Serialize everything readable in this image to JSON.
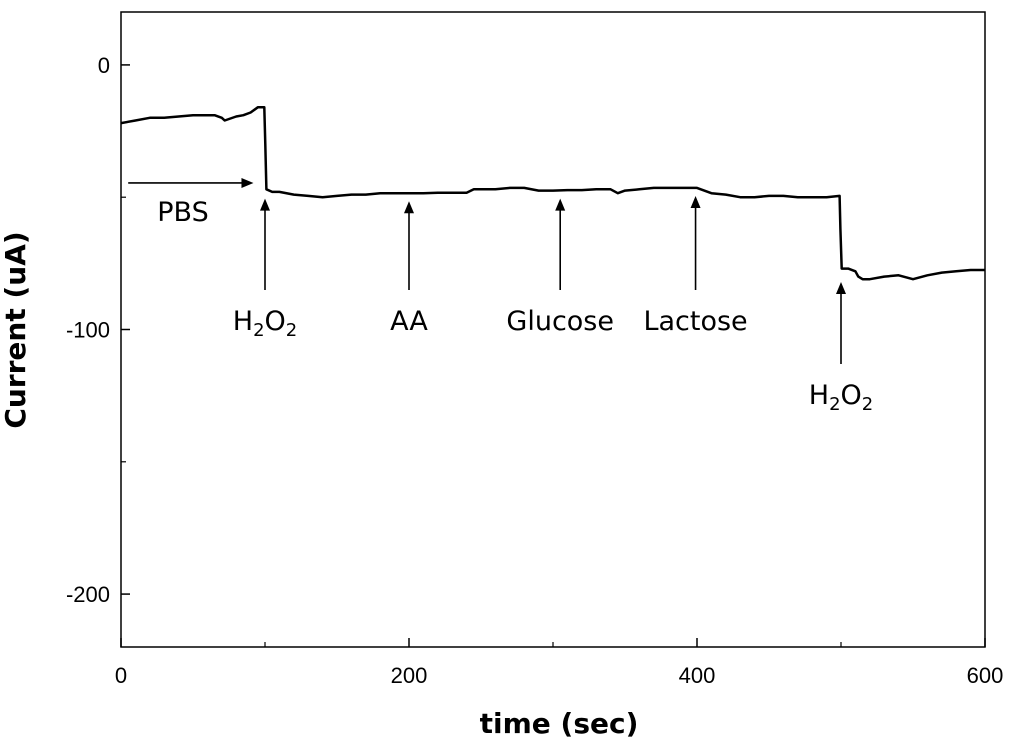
{
  "chart_data": {
    "type": "line",
    "xlabel": "time (sec)",
    "ylabel": "Current (uA)",
    "xlim": [
      0,
      600
    ],
    "ylim": [
      -220,
      20
    ],
    "xticks": [
      0,
      200,
      400,
      600
    ],
    "yticks": [
      0,
      -100,
      -200
    ],
    "grid": false,
    "series": [
      {
        "x": [
          0,
          10,
          20,
          30,
          40,
          50,
          60,
          65,
          70,
          72,
          80,
          85,
          90,
          95,
          99.5,
          100.2,
          101,
          105,
          110,
          120,
          130,
          140,
          150,
          160,
          170,
          180,
          190,
          200,
          210,
          220,
          230,
          240,
          245,
          250,
          260,
          270,
          280,
          290,
          300,
          310,
          320,
          330,
          340,
          345,
          350,
          360,
          370,
          380,
          390,
          400,
          410,
          420,
          430,
          440,
          450,
          460,
          470,
          480,
          490,
          499,
          499.6,
          500.5,
          505,
          510,
          512,
          515,
          520,
          530,
          540,
          550,
          560,
          570,
          580,
          590,
          600
        ],
        "y": [
          -22,
          -21,
          -20,
          -20,
          -19.5,
          -19,
          -19,
          -19,
          -20,
          -21,
          -19.5,
          -19,
          -18,
          -16,
          -16,
          -30,
          -47,
          -48,
          -48,
          -49,
          -49.5,
          -50,
          -49.5,
          -49,
          -49,
          -48.5,
          -48.5,
          -48.5,
          -48.5,
          -48.3,
          -48.3,
          -48.3,
          -47,
          -47,
          -47,
          -46.5,
          -46.5,
          -47.5,
          -47.5,
          -47.3,
          -47.3,
          -47,
          -47,
          -48.5,
          -47.5,
          -47,
          -46.5,
          -46.5,
          -46.5,
          -46.5,
          -48.5,
          -49,
          -50,
          -50,
          -49.5,
          -49.5,
          -50,
          -50,
          -50,
          -49.5,
          -62,
          -77,
          -77,
          -78,
          -80,
          -81,
          -81,
          -80,
          -79.5,
          -81,
          -79.5,
          -78.5,
          -78,
          -77.5,
          -77.5
        ]
      }
    ],
    "annotations": [
      {
        "base": "",
        "sub": "",
        "after": "",
        "arrow_x": 100,
        "arrow_y": -47.5
      },
      {
        "base": "",
        "sub": "",
        "after": "",
        "arrow_x": 200,
        "arrow_y": -48.5
      },
      {
        "base": "",
        "sub": "",
        "after": "",
        "arrow_x": 305,
        "arrow_y": -47.5
      },
      {
        "base": "",
        "sub": "",
        "after": "",
        "arrow_x": 399,
        "arrow_y": -46.5
      },
      {
        "base": "",
        "sub": "",
        "after": "",
        "arrow_x": 500,
        "arrow_y": -79
      }
    ],
    "annotation_labels": [
      {
        "base": "H",
        "sub": "2",
        "after": "O",
        "sub2": "2"
      },
      {
        "base": "AA"
      },
      {
        "base": "Glucose"
      },
      {
        "base": "Lactose"
      },
      {
        "base": "H",
        "sub": "2",
        "after": "O",
        "sub2": "2"
      }
    ],
    "pbs_label": "PBS",
    "pbs_arrow": {
      "x_from": 5,
      "x_to": 92,
      "y": -45
    }
  }
}
